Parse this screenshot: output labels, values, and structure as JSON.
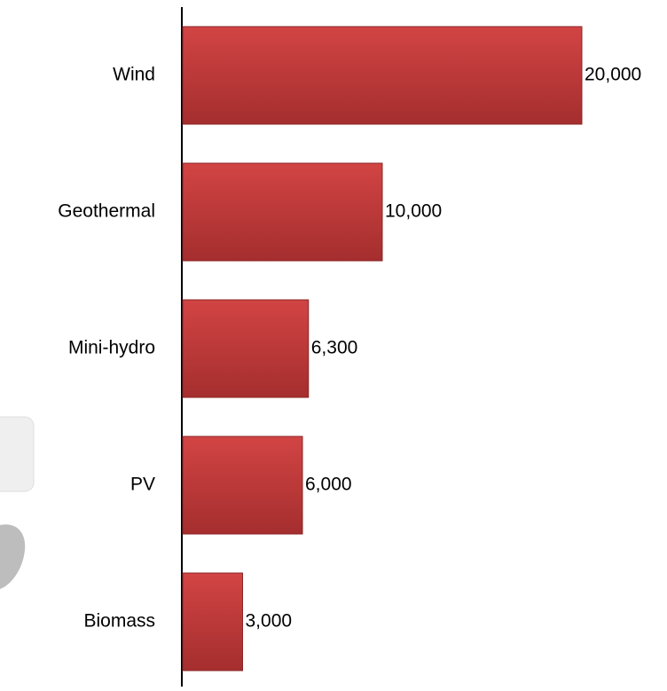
{
  "chart_data": {
    "type": "bar",
    "orientation": "horizontal",
    "categories": [
      "Wind",
      "Geothermal",
      "Mini-hydro",
      "PV",
      "Biomass"
    ],
    "values": [
      20000,
      10000,
      6300,
      6000,
      3000
    ],
    "value_labels": [
      "20,000",
      "10,000",
      "6,300",
      "6,000",
      "3,000"
    ],
    "color": "#c83a3a"
  }
}
